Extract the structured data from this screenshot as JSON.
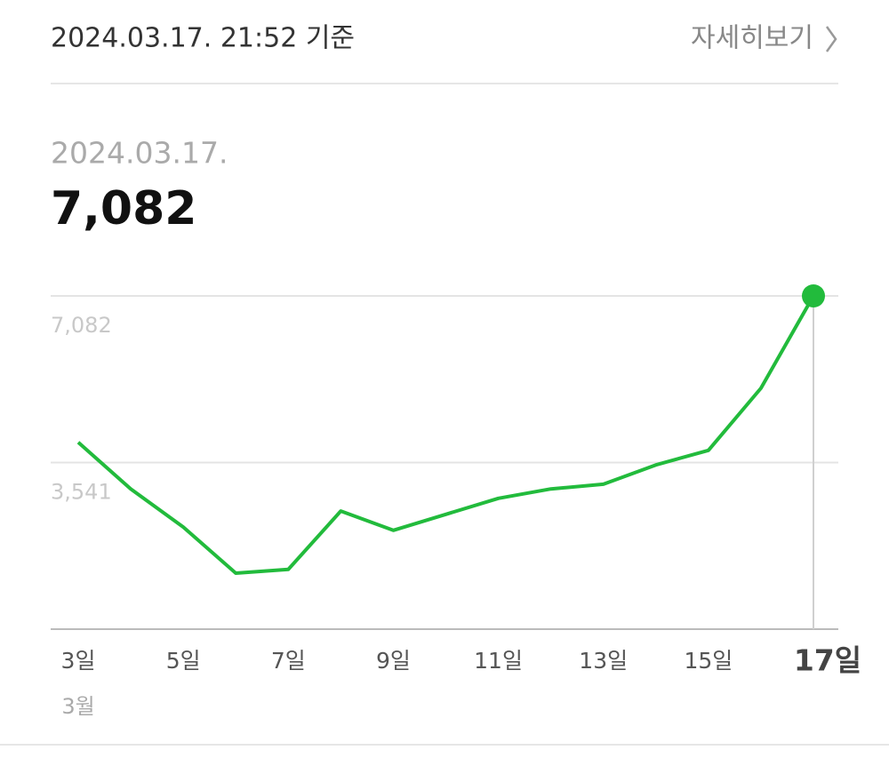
{
  "header": {
    "timestamp": "2024.03.17. 21:52 기준",
    "link": "자세히보기"
  },
  "summary": {
    "date": "2024.03.17.",
    "value": "7,082"
  },
  "chart_data": {
    "type": "line",
    "categories": [
      "3일",
      null,
      "5일",
      null,
      "7일",
      null,
      "9일",
      null,
      "11일",
      null,
      "13일",
      null,
      "15일",
      null,
      "17일"
    ],
    "month_label": "3월",
    "values": [
      3970,
      2980,
      2170,
      1190,
      1270,
      2510,
      2100,
      2440,
      2780,
      2980,
      3080,
      3490,
      3800,
      5120,
      7082
    ],
    "color": "#22bb3c",
    "ylim": [
      0,
      7082
    ],
    "yticks": [
      {
        "value": 3541,
        "label": "3,541"
      },
      {
        "value": 7082,
        "label": "7,082"
      }
    ],
    "grid": true
  }
}
